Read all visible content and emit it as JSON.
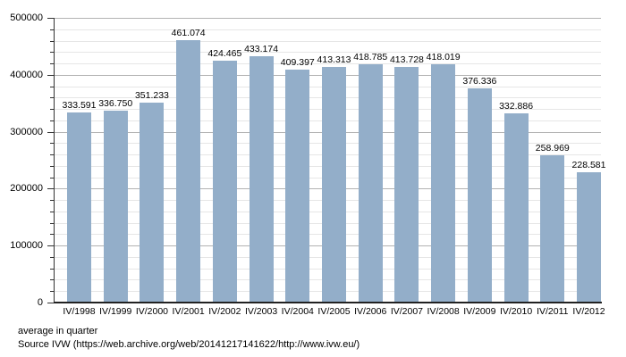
{
  "chart_data": {
    "type": "bar",
    "title": "",
    "categories": [
      "IV/1998",
      "IV/1999",
      "IV/2000",
      "IV/2001",
      "IV/2002",
      "IV/2003",
      "IV/2004",
      "IV/2005",
      "IV/2006",
      "IV/2007",
      "IV/2008",
      "IV/2009",
      "IV/2010",
      "IV/2011",
      "IV/2012"
    ],
    "values": [
      333591,
      336750,
      351233,
      461074,
      424465,
      433174,
      409397,
      413313,
      418785,
      413728,
      418019,
      376336,
      332886,
      258969,
      228581
    ],
    "value_labels": [
      "333.591",
      "336.750",
      "351.233",
      "461.074",
      "424.465",
      "433.174",
      "409.397",
      "413.313",
      "418.785",
      "413.728",
      "418.019",
      "376.336",
      "332.886",
      "258.969",
      "228.581"
    ],
    "ylim": [
      0,
      500000
    ],
    "y_major_step": 100000,
    "y_minor_step": 20000,
    "y_tick_labels": [
      "0",
      "100000",
      "200000",
      "300000",
      "400000",
      "500000"
    ],
    "grid": "on",
    "legend": "none",
    "bar_color": "#93aec9",
    "major_grid_color": "#b2b2b2",
    "minor_grid_color": "#e6e6e6"
  },
  "footer": {
    "note": "average in quarter",
    "source": "Source IVW (https://web.archive.org/web/20141217141622/http://www.ivw.eu/)"
  }
}
